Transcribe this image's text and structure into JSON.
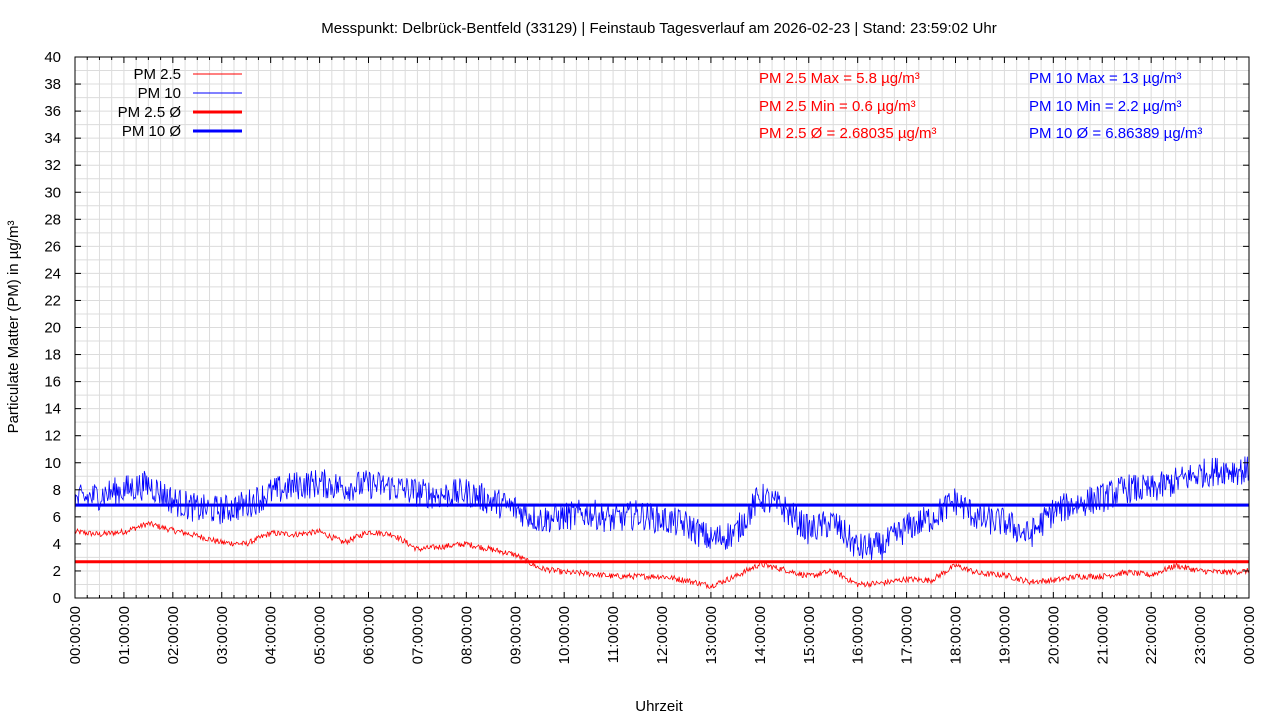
{
  "chart_data": {
    "type": "line",
    "title": "Messpunkt: Delbrück-Bentfeld (33129) | Feinstaub Tagesverlauf am 2026-02-23 | Stand: 23:59:02 Uhr",
    "xlabel": "Uhrzeit",
    "ylabel": "Particulate Matter (PM) in µg/m³",
    "ylim": [
      0,
      40
    ],
    "xlim": [
      "00:00:00",
      "24:00:00"
    ],
    "x_tick_labels": [
      "00:00:00",
      "01:00:00",
      "02:00:00",
      "03:00:00",
      "04:00:00",
      "05:00:00",
      "06:00:00",
      "07:00:00",
      "08:00:00",
      "09:00:00",
      "10:00:00",
      "11:00:00",
      "12:00:00",
      "13:00:00",
      "14:00:00",
      "15:00:00",
      "16:00:00",
      "17:00:00",
      "18:00:00",
      "19:00:00",
      "20:00:00",
      "21:00:00",
      "22:00:00",
      "23:00:00",
      "00:00:00"
    ],
    "y_tick_labels": [
      "0",
      "2",
      "4",
      "6",
      "8",
      "10",
      "12",
      "14",
      "16",
      "18",
      "20",
      "22",
      "24",
      "26",
      "28",
      "30",
      "32",
      "34",
      "36",
      "38",
      "40"
    ],
    "grid": true,
    "legend_position": "top-left",
    "legend": [
      {
        "label": "PM 2.5",
        "color": "#ff0000",
        "style": "thin"
      },
      {
        "label": "PM 10",
        "color": "#0000ff",
        "style": "thin"
      },
      {
        "label": "PM 2.5 Ø",
        "color": "#ff0000",
        "style": "thick"
      },
      {
        "label": "PM 10 Ø",
        "color": "#0000ff",
        "style": "thick"
      }
    ],
    "series": [
      {
        "name": "PM 2.5",
        "color": "#ff0000",
        "x_hours": [
          0,
          0.5,
          1,
          1.5,
          2,
          2.5,
          3,
          3.5,
          4,
          4.5,
          5,
          5.5,
          6,
          6.5,
          7,
          7.5,
          8,
          8.5,
          9,
          9.5,
          10,
          10.5,
          11,
          11.5,
          12,
          12.5,
          13,
          13.5,
          14,
          14.5,
          15,
          15.5,
          16,
          16.5,
          17,
          17.5,
          18,
          18.5,
          19,
          19.5,
          20,
          20.5,
          21,
          21.5,
          22,
          22.5,
          23,
          23.5,
          24
        ],
        "values": [
          4.9,
          4.7,
          4.9,
          5.5,
          5.0,
          4.6,
          4.1,
          4.0,
          4.8,
          4.7,
          4.9,
          4.1,
          4.9,
          4.7,
          3.6,
          3.8,
          4.0,
          3.6,
          3.2,
          2.2,
          1.9,
          1.8,
          1.6,
          1.6,
          1.6,
          1.3,
          0.9,
          1.6,
          2.5,
          2.1,
          1.6,
          2.0,
          1.0,
          1.1,
          1.4,
          1.3,
          2.4,
          1.8,
          1.7,
          1.2,
          1.3,
          1.6,
          1.6,
          1.9,
          1.7,
          2.4,
          2.0,
          1.9,
          2.0
        ]
      },
      {
        "name": "PM 10",
        "color": "#0000ff",
        "x_hours": [
          0,
          0.5,
          1,
          1.5,
          2,
          2.5,
          3,
          3.5,
          4,
          4.5,
          5,
          5.5,
          6,
          6.5,
          7,
          7.5,
          8,
          8.5,
          9,
          9.5,
          10,
          10.5,
          11,
          11.5,
          12,
          12.5,
          13,
          13.5,
          14,
          14.5,
          15,
          15.5,
          16,
          16.5,
          17,
          17.5,
          18,
          18.5,
          19,
          19.5,
          20,
          20.5,
          21,
          21.5,
          22,
          22.5,
          23,
          23.5,
          24
        ],
        "values": [
          7.2,
          7.6,
          8.0,
          8.4,
          7.2,
          6.6,
          6.5,
          6.9,
          7.8,
          8.3,
          8.5,
          8.2,
          8.4,
          8.2,
          7.8,
          7.6,
          7.8,
          7.2,
          6.6,
          5.8,
          6.0,
          6.3,
          5.8,
          6.2,
          5.8,
          5.4,
          4.3,
          4.8,
          7.5,
          6.6,
          5.0,
          5.6,
          3.7,
          3.8,
          5.2,
          5.9,
          7.2,
          5.8,
          5.6,
          4.6,
          6.4,
          7.0,
          7.4,
          8.1,
          8.0,
          8.6,
          9.2,
          9.5,
          9.4
        ]
      },
      {
        "name": "PM 2.5 Ø",
        "color": "#ff0000",
        "constant": 2.68035
      },
      {
        "name": "PM 10 Ø",
        "color": "#0000ff",
        "constant": 6.86389
      }
    ],
    "annotations": {
      "pm25": [
        "PM 2.5 Max = 5.8 µg/m³",
        "PM 2.5 Min = 0.6 µg/m³",
        "PM 2.5 Ø = 2.68035 µg/m³"
      ],
      "pm10": [
        "PM 10 Max = 13 µg/m³",
        "PM 10 Min = 2.2 µg/m³",
        "PM 10 Ø = 6.86389 µg/m³"
      ]
    }
  }
}
